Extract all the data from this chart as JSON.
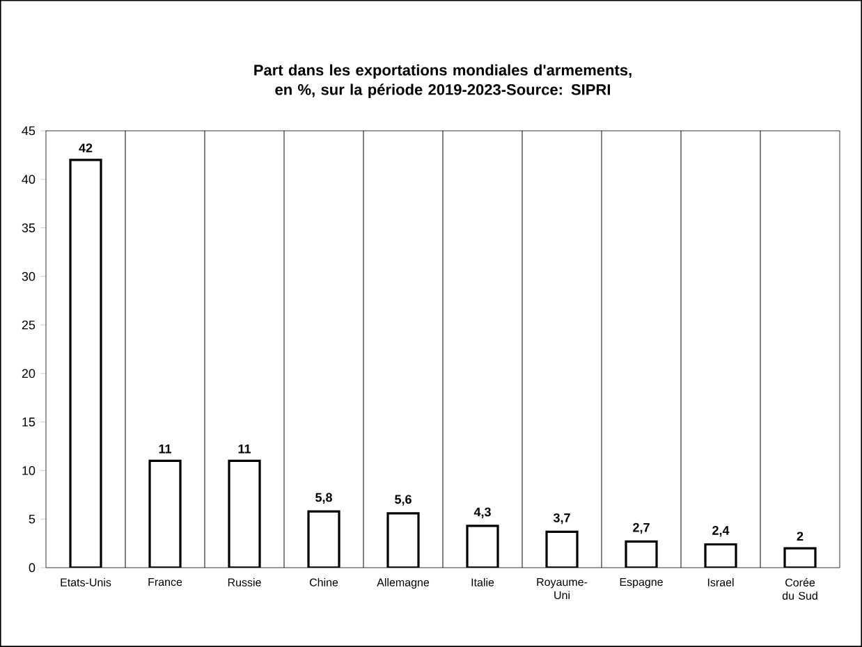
{
  "chart_data": {
    "type": "bar",
    "title": "Part dans les exportations mondiales d'armements, en %, sur la période 2019-2023-Source: SIPRI",
    "categories": [
      "Etats-Unis",
      "France",
      "Russie",
      "Chine",
      "Allemagne",
      "Italie",
      "Royaume-Uni",
      "Espagne",
      "Israel",
      "Corée du Sud"
    ],
    "values": [
      42,
      11,
      11,
      5.8,
      5.6,
      4.3,
      3.7,
      2.7,
      2.4,
      2
    ],
    "value_labels": [
      "42",
      "11",
      "11",
      "5,8",
      "5,6",
      "4,3",
      "3,7",
      "2,7",
      "2,4",
      "2"
    ],
    "color": "#ffffff",
    "ylim": [
      0,
      45
    ],
    "yticks": [
      0,
      5,
      10,
      15,
      20,
      25,
      30,
      35,
      40,
      45
    ],
    "grid": "x"
  }
}
